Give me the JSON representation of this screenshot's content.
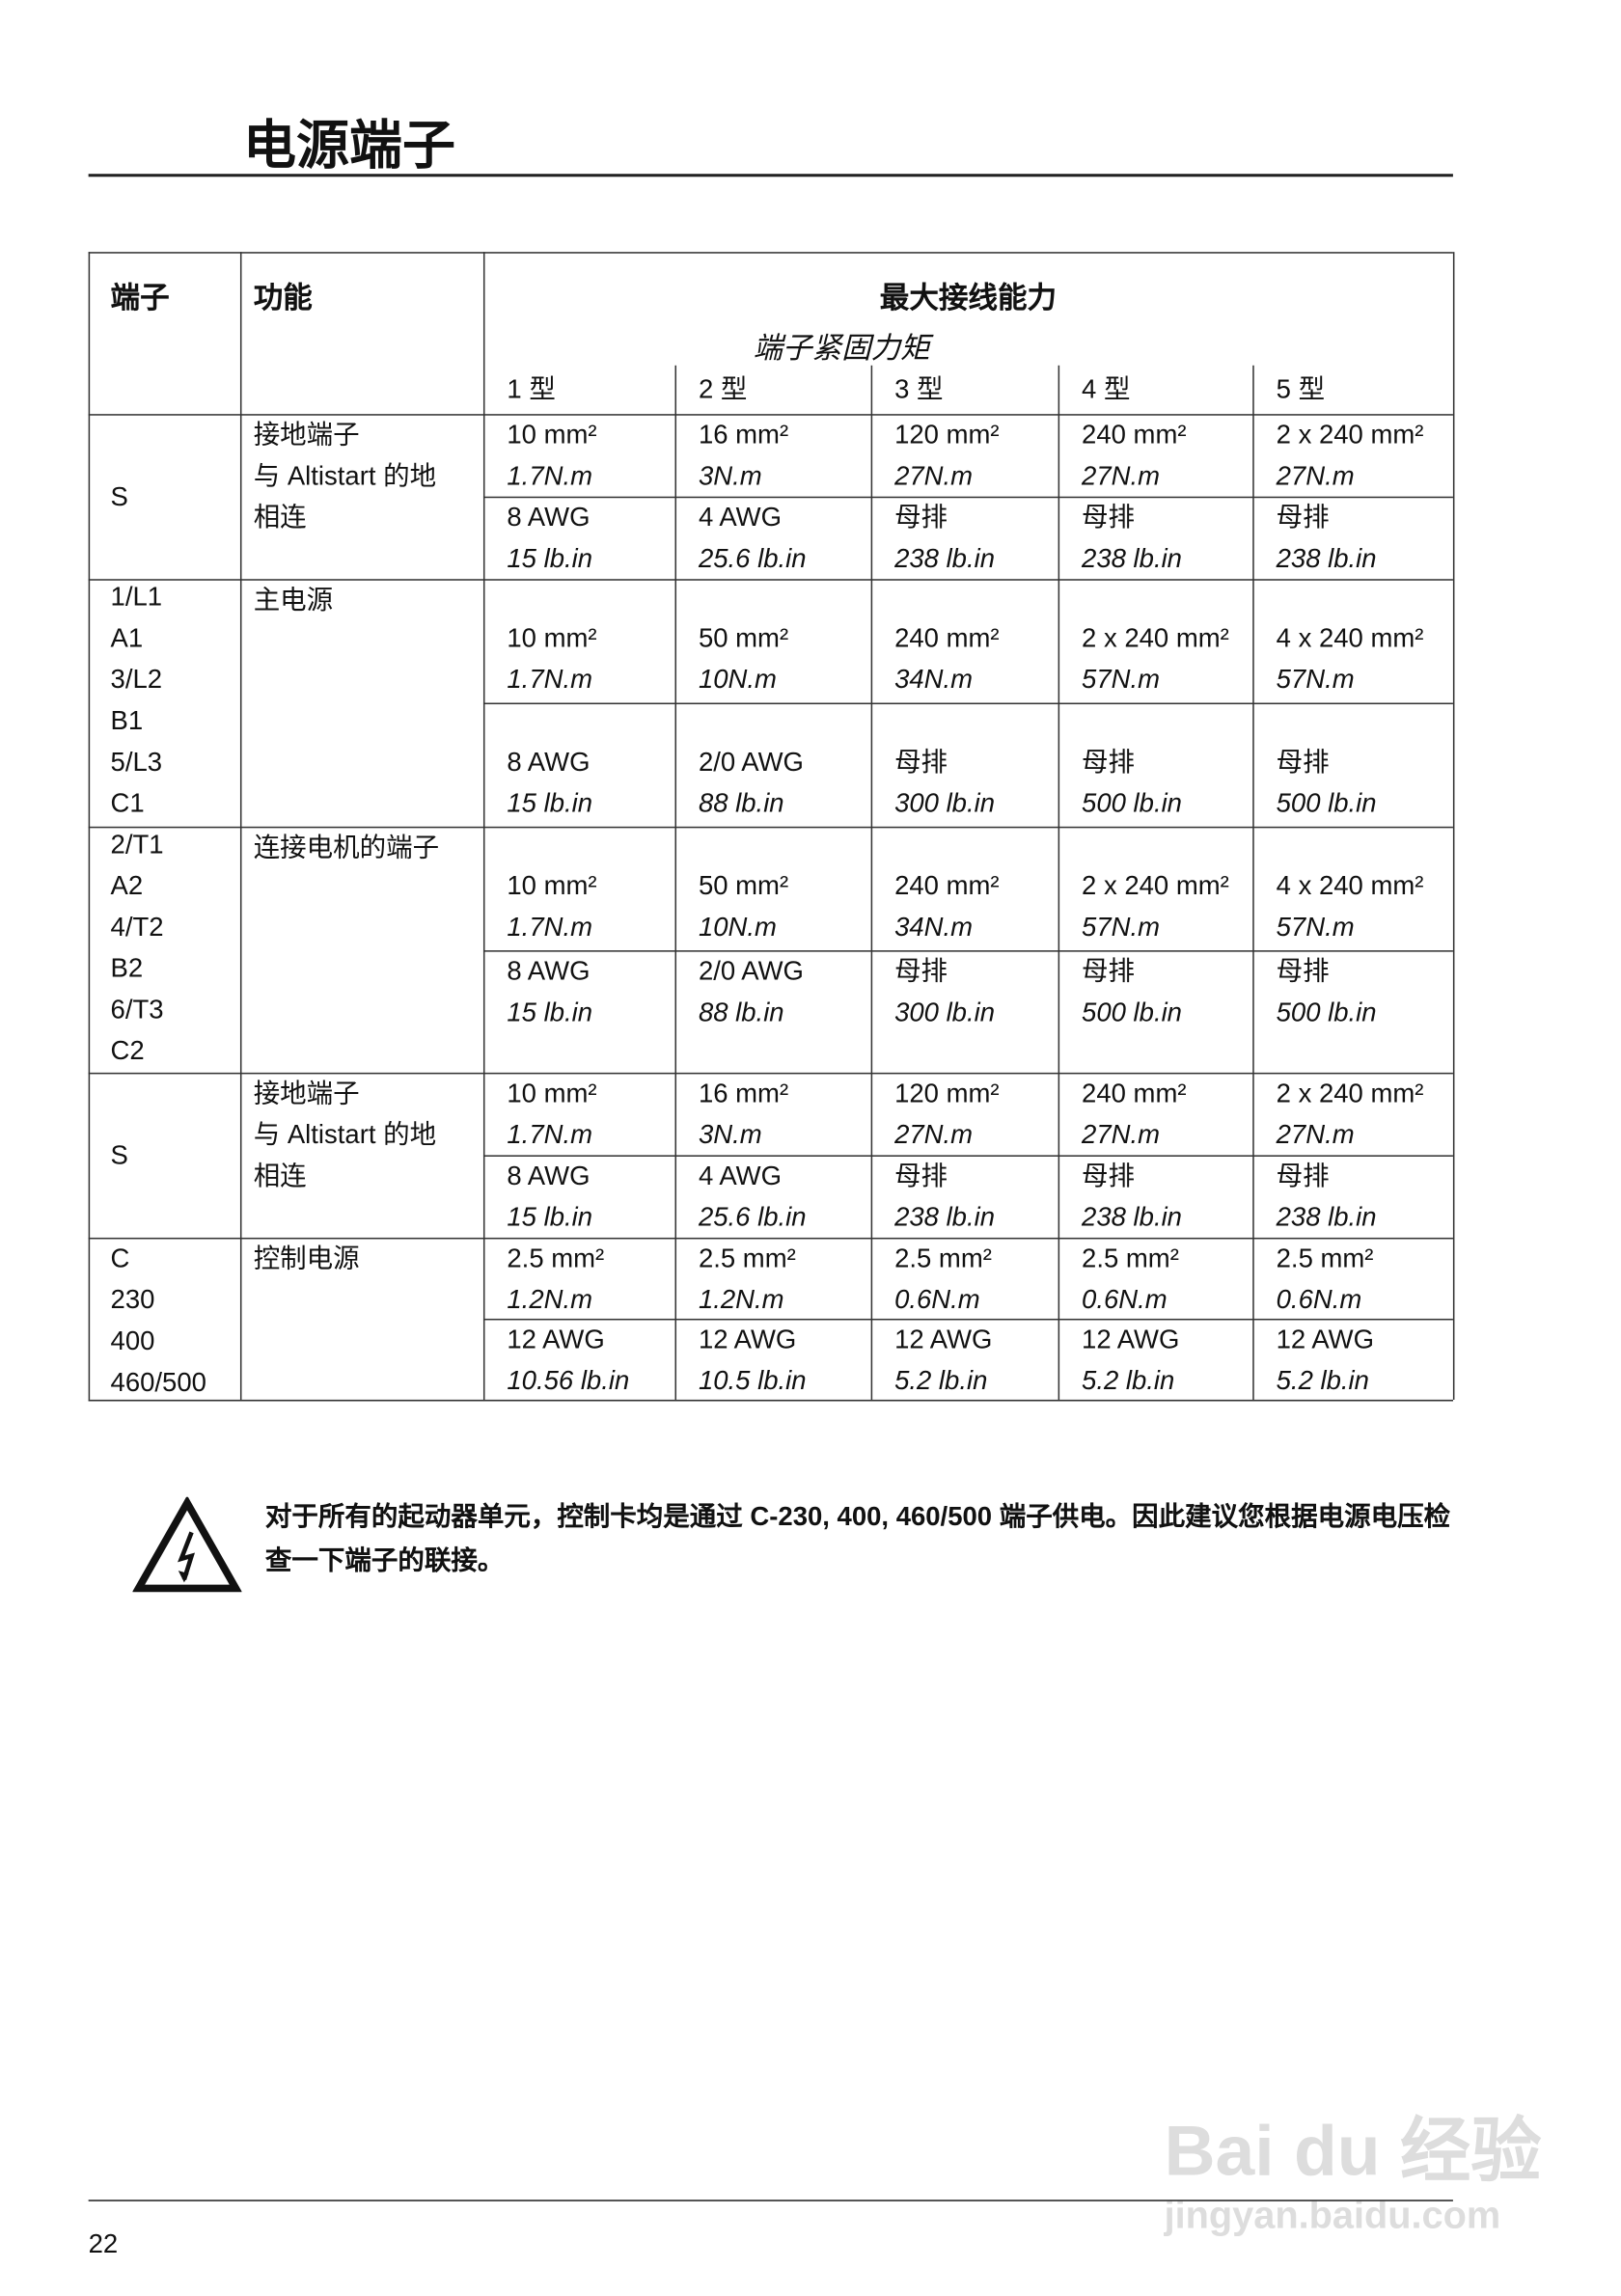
{
  "page": {
    "title": "电源端子",
    "page_number": "22"
  },
  "table": {
    "headers": {
      "terminal": "端子",
      "function": "功能",
      "capacity": "最大接线能力",
      "torque": "端子紧固力矩",
      "types": [
        "1 型",
        "2 型",
        "3 型",
        "4 型",
        "5 型"
      ]
    },
    "groups": [
      {
        "terminals": [
          "S"
        ],
        "function": [
          "接地端子",
          "与 Altistart 的地",
          "相连"
        ],
        "rows": [
          {
            "cells": [
              [
                "10 mm²",
                "1.7N.m"
              ],
              [
                "16 mm²",
                "3N.m"
              ],
              [
                "120 mm²",
                "27N.m"
              ],
              [
                "240 mm²",
                "27N.m"
              ],
              [
                "2 x 240 mm²",
                "27N.m"
              ]
            ]
          },
          {
            "cells": [
              [
                "8 AWG",
                "15 lb.in"
              ],
              [
                "4 AWG",
                "25.6 lb.in"
              ],
              [
                "母排",
                "238 lb.in"
              ],
              [
                "母排",
                "238 lb.in"
              ],
              [
                "母排",
                "238 lb.in"
              ]
            ]
          }
        ]
      },
      {
        "terminals": [
          "1/L1",
          "A1",
          "3/L2",
          "B1",
          "5/L3",
          "C1"
        ],
        "function": [
          "主电源"
        ],
        "rows": [
          {
            "cells": [
              [
                "10 mm²",
                "1.7N.m"
              ],
              [
                "50 mm²",
                "10N.m"
              ],
              [
                "240 mm²",
                "34N.m"
              ],
              [
                "2 x 240 mm²",
                "57N.m"
              ],
              [
                "4 x 240 mm²",
                "57N.m"
              ]
            ]
          },
          {
            "cells": [
              [
                "8 AWG",
                "15 lb.in"
              ],
              [
                "2/0 AWG",
                "88 lb.in"
              ],
              [
                "母排",
                "300 lb.in"
              ],
              [
                "母排",
                "500 lb.in"
              ],
              [
                "母排",
                "500 lb.in"
              ]
            ]
          }
        ]
      },
      {
        "terminals": [
          "2/T1",
          "A2",
          "4/T2",
          "B2",
          "6/T3",
          "C2"
        ],
        "function": [
          "连接电机的端子"
        ],
        "rows": [
          {
            "cells": [
              [
                "10 mm²",
                "1.7N.m"
              ],
              [
                "50 mm²",
                "10N.m"
              ],
              [
                "240 mm²",
                "34N.m"
              ],
              [
                "2 x 240 mm²",
                "57N.m"
              ],
              [
                "4 x 240 mm²",
                "57N.m"
              ]
            ]
          },
          {
            "cells": [
              [
                "8 AWG",
                "15 lb.in"
              ],
              [
                "2/0 AWG",
                "88 lb.in"
              ],
              [
                "母排",
                "300 lb.in"
              ],
              [
                "母排",
                "500 lb.in"
              ],
              [
                "母排",
                "500 lb.in"
              ]
            ]
          }
        ]
      },
      {
        "terminals": [
          "S"
        ],
        "function": [
          "接地端子",
          "与 Altistart 的地",
          "相连"
        ],
        "rows": [
          {
            "cells": [
              [
                "10 mm²",
                "1.7N.m"
              ],
              [
                "16 mm²",
                "3N.m"
              ],
              [
                "120 mm²",
                "27N.m"
              ],
              [
                "240 mm²",
                "27N.m"
              ],
              [
                "2 x 240 mm²",
                "27N.m"
              ]
            ]
          },
          {
            "cells": [
              [
                "8 AWG",
                "15 lb.in"
              ],
              [
                "4 AWG",
                "25.6 lb.in"
              ],
              [
                "母排",
                "238 lb.in"
              ],
              [
                "母排",
                "238 lb.in"
              ],
              [
                "母排",
                "238 lb.in"
              ]
            ]
          }
        ]
      },
      {
        "terminals": [
          "C",
          "230",
          "400",
          "460/500"
        ],
        "function": [
          "控制电源"
        ],
        "rows": [
          {
            "cells": [
              [
                "2.5 mm²",
                "1.2N.m"
              ],
              [
                "2.5 mm²",
                "1.2N.m"
              ],
              [
                "2.5 mm²",
                "0.6N.m"
              ],
              [
                "2.5 mm²",
                "0.6N.m"
              ],
              [
                "2.5 mm²",
                "0.6N.m"
              ]
            ]
          },
          {
            "cells": [
              [
                "12 AWG",
                "10.56 lb.in"
              ],
              [
                "12 AWG",
                "10.5 lb.in"
              ],
              [
                "12 AWG",
                "5.2 lb.in"
              ],
              [
                "12 AWG",
                "5.2 lb.in"
              ],
              [
                "12 AWG",
                "5.2 lb.in"
              ]
            ]
          }
        ]
      }
    ]
  },
  "warning": {
    "icon": "electric-hazard-icon",
    "text": "对于所有的起动器单元，控制卡均是通过 C-230, 400, 460/500 端子供电。因此建议您根据电源电压检查一下端子的联接。"
  },
  "watermark": {
    "brand": "Bai du 经验",
    "url": "jingyan.baidu.com"
  }
}
